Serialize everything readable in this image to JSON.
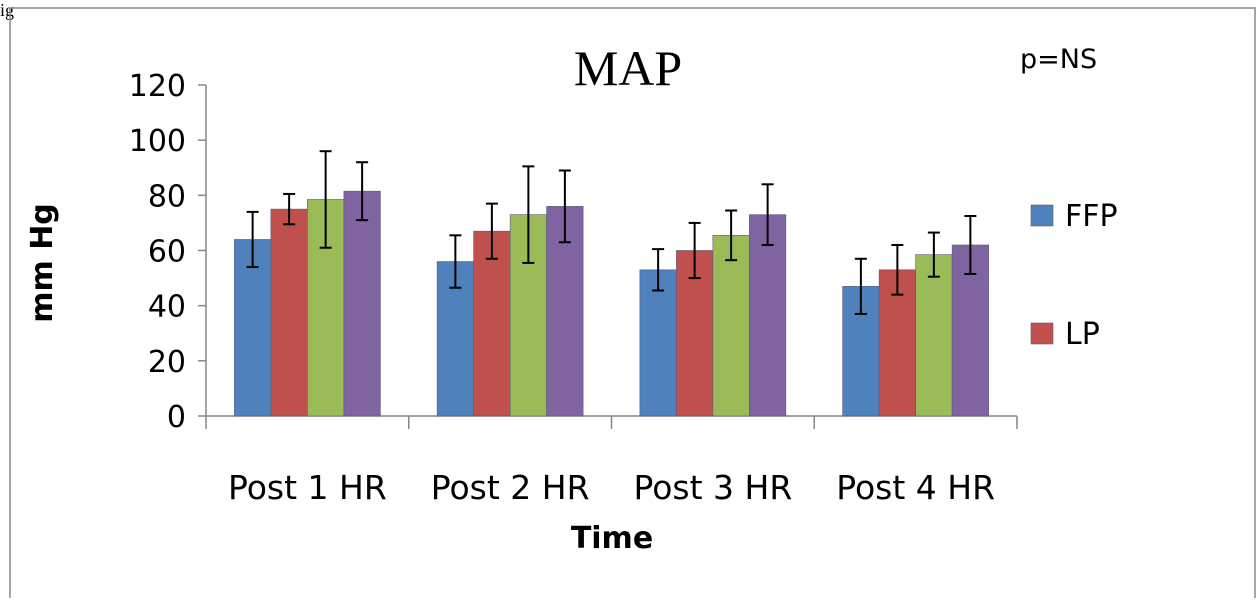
{
  "caption_fragment": "ig",
  "chart_data": {
    "type": "bar",
    "title": "MAP",
    "annotation": "p=NS",
    "xlabel": "Time",
    "ylabel": "mm Hg",
    "ylim": [
      0,
      120
    ],
    "yticks": [
      0,
      20,
      40,
      60,
      80,
      100,
      120
    ],
    "grid": false,
    "legend_position": "right",
    "categories": [
      "Post 1 HR",
      "Post 2 HR",
      "Post 3 HR",
      "Post 4 HR"
    ],
    "series": [
      {
        "name": "FFP",
        "color": "#4f81bd",
        "values": [
          64,
          56,
          53,
          47
        ],
        "errors": [
          10,
          9.5,
          7.5,
          10
        ]
      },
      {
        "name": "LP",
        "color": "#c0504d",
        "values": [
          75,
          67,
          60,
          53
        ],
        "errors": [
          5.5,
          10,
          10,
          9
        ]
      },
      {
        "color": "#9bbb59",
        "values": [
          78.5,
          73,
          65.5,
          58.5
        ],
        "errors": [
          17.5,
          17.5,
          9,
          8
        ]
      },
      {
        "color": "#8064a2",
        "values": [
          81.5,
          76,
          73,
          62
        ],
        "errors": [
          10.5,
          13,
          11,
          10.5
        ]
      }
    ]
  }
}
